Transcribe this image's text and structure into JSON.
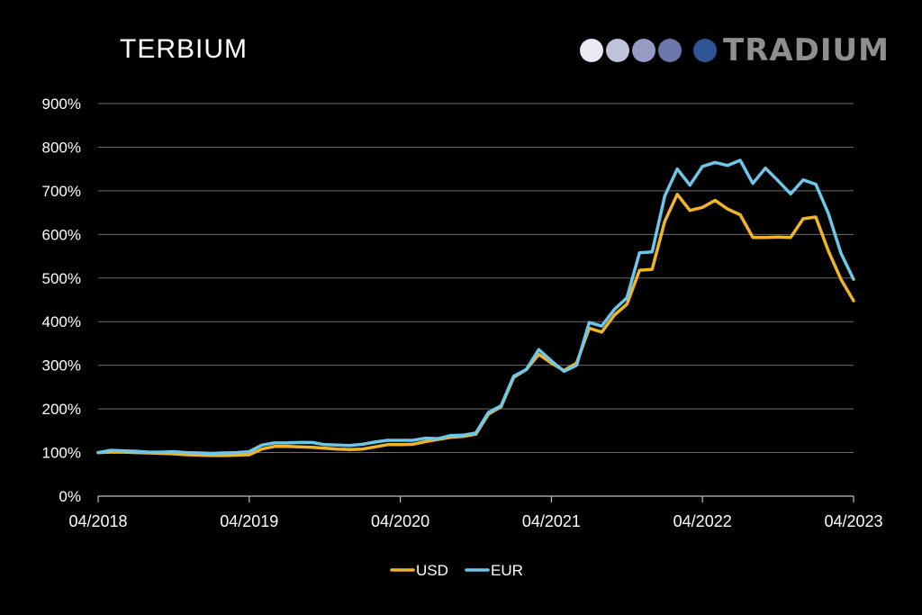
{
  "brand": {
    "name": "TRADIUM",
    "dot_colors": [
      "#e8e9f2",
      "#bfc3dc",
      "#959bc4",
      "#6d77ab",
      "#2f5597"
    ],
    "name_color": "#8f8f8f"
  },
  "chart_data": {
    "type": "line",
    "title": "TERBIUM",
    "xlabel": "",
    "ylabel": "",
    "x_ticks": [
      "04/2018",
      "04/2019",
      "04/2020",
      "04/2021",
      "04/2022",
      "04/2023"
    ],
    "y_ticks": [
      "0%",
      "100%",
      "200%",
      "300%",
      "400%",
      "500%",
      "600%",
      "700%",
      "800%",
      "900%"
    ],
    "ylim": [
      0,
      900
    ],
    "x_range_months": [
      0,
      60
    ],
    "grid": true,
    "legend_position": "bottom-center",
    "series": [
      {
        "name": "USD",
        "color": "#f0b429",
        "x": [
          0,
          1,
          2,
          3,
          4,
          5,
          6,
          7,
          8,
          9,
          10,
          11,
          12,
          13,
          14,
          15,
          16,
          17,
          18,
          19,
          20,
          21,
          22,
          23,
          24,
          25,
          26,
          27,
          28,
          29,
          30,
          31,
          32,
          33,
          34,
          35,
          36,
          37,
          38,
          39,
          40,
          41,
          42,
          43,
          44,
          45,
          46,
          47,
          48,
          49,
          50,
          51,
          52,
          53,
          54,
          55,
          56,
          57,
          58,
          59,
          60
        ],
        "values": [
          100,
          101,
          101,
          100,
          99,
          98,
          97,
          95,
          94,
          93,
          93,
          94,
          95,
          108,
          114,
          114,
          113,
          112,
          110,
          108,
          107,
          108,
          113,
          118,
          118,
          119,
          125,
          130,
          135,
          137,
          142,
          188,
          205,
          272,
          290,
          325,
          305,
          288,
          305,
          385,
          376,
          415,
          440,
          518,
          520,
          630,
          692,
          655,
          662,
          678,
          658,
          645,
          593,
          593,
          594,
          593,
          636,
          640,
          562,
          497,
          448
        ]
      },
      {
        "name": "EUR",
        "color": "#6ec6e8",
        "x": [
          0,
          1,
          2,
          3,
          4,
          5,
          6,
          7,
          8,
          9,
          10,
          11,
          12,
          13,
          14,
          15,
          16,
          17,
          18,
          19,
          20,
          21,
          22,
          23,
          24,
          25,
          26,
          27,
          28,
          29,
          30,
          31,
          32,
          33,
          34,
          35,
          36,
          37,
          38,
          39,
          40,
          41,
          42,
          43,
          44,
          45,
          46,
          47,
          48,
          49,
          50,
          51,
          52,
          53,
          54,
          55,
          56,
          57,
          58,
          59,
          60
        ],
        "values": [
          100,
          105,
          104,
          103,
          101,
          101,
          102,
          100,
          99,
          98,
          99,
          100,
          102,
          117,
          122,
          122,
          123,
          123,
          118,
          117,
          116,
          119,
          124,
          128,
          128,
          128,
          133,
          132,
          139,
          140,
          145,
          192,
          207,
          275,
          290,
          336,
          310,
          286,
          300,
          398,
          390,
          428,
          455,
          558,
          560,
          688,
          750,
          713,
          756,
          765,
          758,
          770,
          717,
          752,
          723,
          693,
          725,
          715,
          648,
          557,
          497
        ]
      }
    ]
  }
}
